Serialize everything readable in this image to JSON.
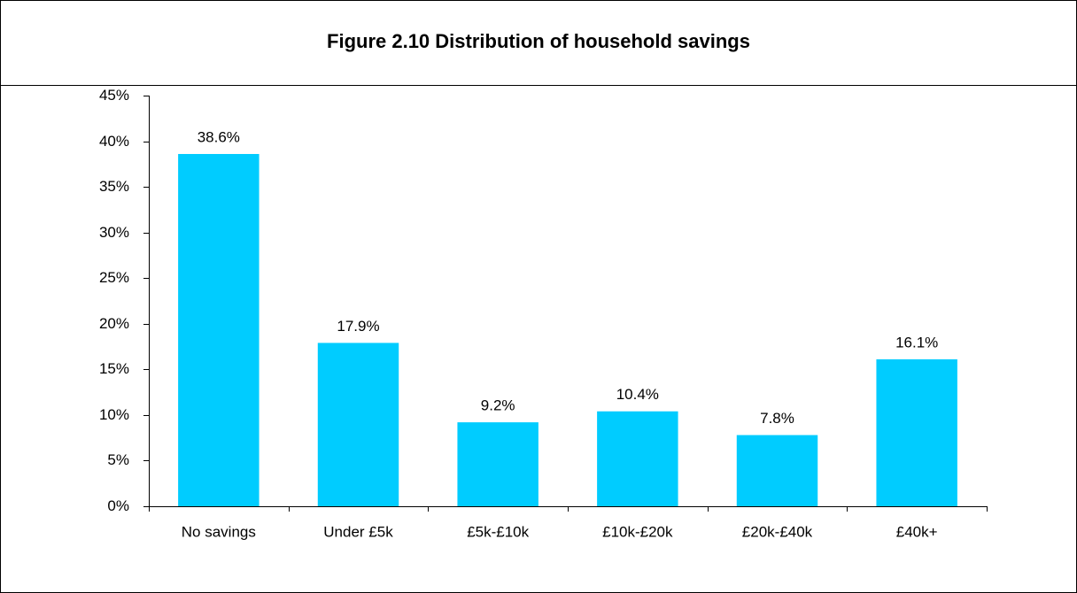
{
  "chart_data": {
    "type": "bar",
    "title": "Figure 2.10 Distribution of household savings",
    "categories": [
      "No savings",
      "Under £5k",
      "£5k-£10k",
      "£10k-£20k",
      "£20k-£40k",
      "£40k+"
    ],
    "values": [
      38.6,
      17.9,
      9.2,
      10.4,
      7.8,
      16.1
    ],
    "value_labels": [
      "38.6%",
      "17.9%",
      "9.2%",
      "10.4%",
      "7.8%",
      "16.1%"
    ],
    "color": "#00ccff",
    "ylim": [
      0,
      45
    ],
    "yticks": [
      {
        "value": 0,
        "label": "0%"
      },
      {
        "value": 5,
        "label": "5%"
      },
      {
        "value": 10,
        "label": "10%"
      },
      {
        "value": 15,
        "label": "15%"
      },
      {
        "value": 20,
        "label": "20%"
      },
      {
        "value": 25,
        "label": "25%"
      },
      {
        "value": 30,
        "label": "30%"
      },
      {
        "value": 35,
        "label": "35%"
      },
      {
        "value": 40,
        "label": "40%"
      },
      {
        "value": 45,
        "label": "45%"
      }
    ],
    "grid": false
  }
}
